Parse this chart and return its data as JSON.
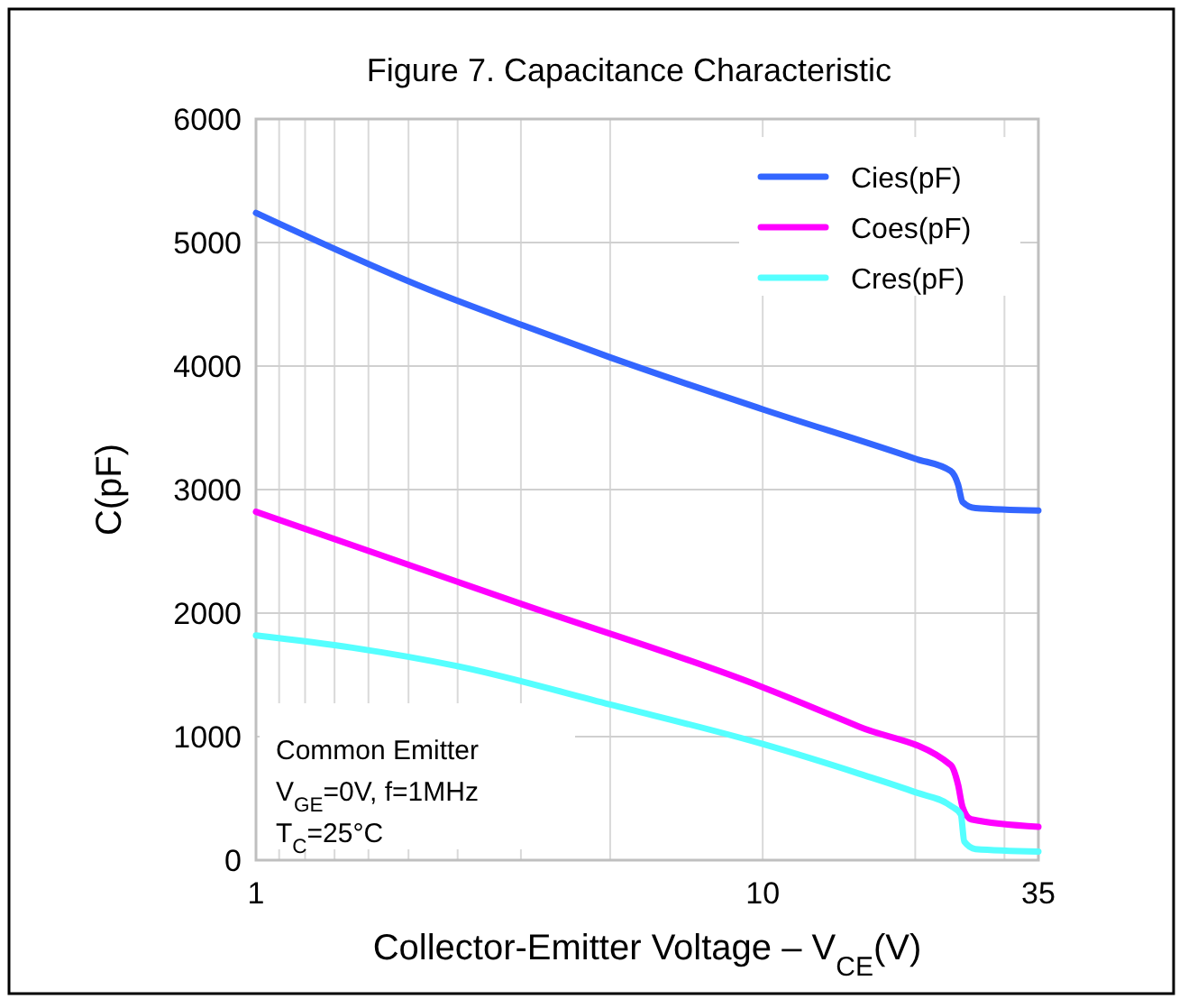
{
  "chart_data": {
    "type": "line",
    "title": "Figure 7. Capacitance Characteristic",
    "xlabel": "Collector-Emitter Voltage – V$_{CE}$(V)",
    "ylabel": "C(pF)",
    "log": "x",
    "xlim": [
      1,
      35
    ],
    "ylim": [
      0,
      6000
    ],
    "xticks": [
      1,
      {
        "value": 1.111,
        "label": null
      },
      {
        "value": 1.25,
        "label": null
      },
      {
        "value": 1.429,
        "label": null
      },
      {
        "value": 1.667,
        "label": null
      },
      {
        "value": 2,
        "label": null
      },
      {
        "value": 2.5,
        "label": null
      },
      {
        "value": 3.333,
        "label": null
      },
      {
        "value": 5,
        "label": null
      },
      10,
      {
        "value": 20,
        "label": null
      },
      {
        "value": 30,
        "label": null
      },
      35
    ],
    "yticks": [
      0,
      1000,
      2000,
      3000,
      4000,
      5000,
      6000
    ],
    "grid": true,
    "legend": "top right",
    "line_style": "solid",
    "marker": "none",
    "annotations": [
      "Common Emitter",
      "V$_{GE}$=0V, f=1MHz",
      "T$_{C}$=25°C"
    ],
    "series": [
      {
        "name": "Cies(pF)",
        "color": "#3366ff",
        "x": [
          1,
          2.19,
          3.36,
          5,
          10,
          20,
          23.5,
          24.3,
          24.8,
          26.3,
          35
        ],
        "values": [
          5240,
          4620,
          4330,
          4070,
          3650,
          3250,
          3150,
          3040,
          2900,
          2850,
          2830
        ]
      },
      {
        "name": "Coes(pF)",
        "color": "#ff00ff",
        "x": [
          1,
          3.36,
          10,
          15.5,
          23.5,
          24.3,
          24.8,
          25.8,
          35
        ],
        "values": [
          2820,
          2070,
          1400,
          1080,
          770,
          610,
          430,
          330,
          270
        ]
      },
      {
        "name": "Cres(pF)",
        "color": "#55ffff",
        "x": [
          1,
          1.55,
          2.5,
          5,
          10,
          15.5,
          20,
          23.5,
          24.6,
          25,
          26.3,
          35
        ],
        "values": [
          1820,
          1720,
          1570,
          1260,
          940,
          700,
          550,
          440,
          370,
          150,
          90,
          70
        ]
      }
    ]
  }
}
